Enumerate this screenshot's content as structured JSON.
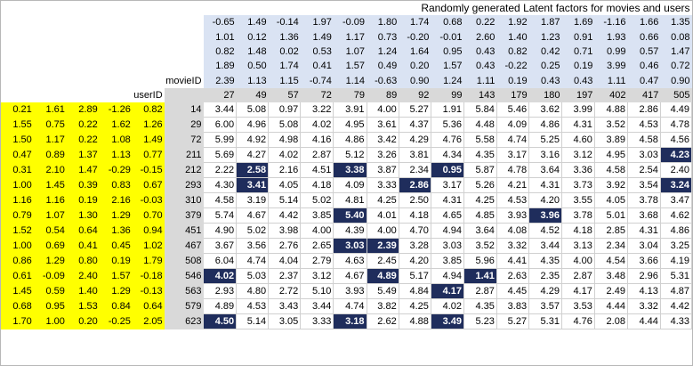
{
  "title": "Randomly generated Latent factors for movies and users",
  "movie_id_label": "movieID",
  "user_id_label": "userID",
  "movie_factors": [
    [
      "-0.65",
      "1.49",
      "-0.14",
      "1.97",
      "-0.09",
      "1.80",
      "1.74",
      "0.68",
      "0.22",
      "1.92",
      "1.87",
      "1.69",
      "-1.16",
      "1.66",
      "1.35"
    ],
    [
      "1.01",
      "0.12",
      "1.36",
      "1.49",
      "1.17",
      "0.73",
      "-0.20",
      "-0.01",
      "2.60",
      "1.40",
      "1.23",
      "0.91",
      "1.93",
      "0.66",
      "0.08"
    ],
    [
      "0.82",
      "1.48",
      "0.02",
      "0.53",
      "1.07",
      "1.24",
      "1.64",
      "0.95",
      "0.43",
      "0.82",
      "0.42",
      "0.71",
      "0.99",
      "0.57",
      "1.47"
    ],
    [
      "1.89",
      "0.50",
      "1.74",
      "0.41",
      "1.57",
      "0.49",
      "0.20",
      "1.57",
      "0.43",
      "-0.22",
      "0.25",
      "0.19",
      "3.99",
      "0.46",
      "0.72"
    ],
    [
      "2.39",
      "1.13",
      "1.15",
      "-0.74",
      "1.14",
      "-0.63",
      "0.90",
      "1.24",
      "1.11",
      "0.19",
      "0.43",
      "0.43",
      "1.11",
      "0.47",
      "0.90"
    ]
  ],
  "movie_ids": [
    "27",
    "49",
    "57",
    "72",
    "79",
    "89",
    "92",
    "99",
    "143",
    "179",
    "180",
    "197",
    "402",
    "417",
    "505"
  ],
  "rows": [
    {
      "factors": [
        "0.21",
        "1.61",
        "2.89",
        "-1.26",
        "0.82"
      ],
      "user_id": "14",
      "values": [
        "3.44",
        "5.08",
        "0.97",
        "3.22",
        "3.91",
        "4.00",
        "5.27",
        "1.91",
        "5.84",
        "5.46",
        "3.62",
        "3.99",
        "4.88",
        "2.86",
        "4.49"
      ]
    },
    {
      "factors": [
        "1.55",
        "0.75",
        "0.22",
        "1.62",
        "1.26"
      ],
      "user_id": "29",
      "values": [
        "6.00",
        "4.96",
        "5.08",
        "4.02",
        "4.95",
        "3.61",
        "4.37",
        "5.36",
        "4.48",
        "4.09",
        "4.86",
        "4.31",
        "3.52",
        "4.53",
        "4.78"
      ]
    },
    {
      "factors": [
        "1.50",
        "1.17",
        "0.22",
        "1.08",
        "1.49"
      ],
      "user_id": "72",
      "values": [
        "5.99",
        "4.92",
        "4.98",
        "4.16",
        "4.86",
        "3.42",
        "4.29",
        "4.76",
        "5.58",
        "4.74",
        "5.25",
        "4.60",
        "3.89",
        "4.58",
        "4.56"
      ]
    },
    {
      "factors": [
        "0.47",
        "0.89",
        "1.37",
        "1.13",
        "0.77"
      ],
      "user_id": "211",
      "values": [
        "5.69",
        "4.27",
        "4.02",
        "2.87",
        "5.12",
        "3.26",
        "3.81",
        "4.34",
        "4.35",
        "3.17",
        "3.16",
        "3.12",
        "4.95",
        "3.03",
        "4.23"
      ]
    },
    {
      "factors": [
        "0.31",
        "2.10",
        "1.47",
        "-0.29",
        "-0.15"
      ],
      "user_id": "212",
      "values": [
        "2.22",
        "2.58",
        "2.16",
        "4.51",
        "3.38",
        "3.87",
        "2.34",
        "0.95",
        "5.87",
        "4.78",
        "3.64",
        "3.36",
        "4.58",
        "2.54",
        "2.40"
      ]
    },
    {
      "factors": [
        "1.00",
        "1.45",
        "0.39",
        "0.83",
        "0.67"
      ],
      "user_id": "293",
      "values": [
        "4.30",
        "3.41",
        "4.05",
        "4.18",
        "4.09",
        "3.33",
        "2.86",
        "3.17",
        "5.26",
        "4.21",
        "4.31",
        "3.73",
        "3.92",
        "3.54",
        "3.24"
      ]
    },
    {
      "factors": [
        "1.16",
        "1.16",
        "0.19",
        "2.16",
        "-0.03"
      ],
      "user_id": "310",
      "values": [
        "4.58",
        "3.19",
        "5.14",
        "5.02",
        "4.81",
        "4.25",
        "2.50",
        "4.31",
        "4.25",
        "4.53",
        "4.20",
        "3.55",
        "4.05",
        "3.78",
        "3.47"
      ]
    },
    {
      "factors": [
        "0.79",
        "1.07",
        "1.30",
        "1.29",
        "0.70"
      ],
      "user_id": "379",
      "values": [
        "5.74",
        "4.67",
        "4.42",
        "3.85",
        "5.40",
        "4.01",
        "4.18",
        "4.65",
        "4.85",
        "3.93",
        "3.96",
        "3.78",
        "5.01",
        "3.68",
        "4.62"
      ]
    },
    {
      "factors": [
        "1.52",
        "0.54",
        "0.64",
        "1.36",
        "0.94"
      ],
      "user_id": "451",
      "values": [
        "4.90",
        "5.02",
        "3.98",
        "4.00",
        "4.39",
        "4.00",
        "4.70",
        "4.94",
        "3.64",
        "4.08",
        "4.52",
        "4.18",
        "2.85",
        "4.31",
        "4.86"
      ]
    },
    {
      "factors": [
        "1.00",
        "0.69",
        "0.41",
        "0.45",
        "1.02"
      ],
      "user_id": "467",
      "values": [
        "3.67",
        "3.56",
        "2.76",
        "2.65",
        "3.03",
        "2.39",
        "3.28",
        "3.03",
        "3.52",
        "3.32",
        "3.44",
        "3.13",
        "2.34",
        "3.04",
        "3.25"
      ]
    },
    {
      "factors": [
        "0.86",
        "1.29",
        "0.80",
        "0.19",
        "1.79"
      ],
      "user_id": "508",
      "values": [
        "6.04",
        "4.74",
        "4.04",
        "2.79",
        "4.63",
        "2.45",
        "4.20",
        "3.85",
        "5.96",
        "4.41",
        "4.35",
        "4.00",
        "4.54",
        "3.66",
        "4.19"
      ]
    },
    {
      "factors": [
        "0.61",
        "-0.09",
        "2.40",
        "1.57",
        "-0.18"
      ],
      "user_id": "546",
      "values": [
        "4.02",
        "5.03",
        "2.37",
        "3.12",
        "4.67",
        "4.89",
        "5.17",
        "4.94",
        "1.41",
        "2.63",
        "2.35",
        "2.87",
        "3.48",
        "2.96",
        "5.31"
      ]
    },
    {
      "factors": [
        "1.45",
        "0.59",
        "1.40",
        "1.29",
        "-0.13"
      ],
      "user_id": "563",
      "values": [
        "2.93",
        "4.80",
        "2.72",
        "5.10",
        "3.93",
        "5.49",
        "4.84",
        "4.17",
        "2.87",
        "4.45",
        "4.29",
        "4.17",
        "2.49",
        "4.13",
        "4.87"
      ]
    },
    {
      "factors": [
        "0.68",
        "0.95",
        "1.53",
        "0.84",
        "0.64"
      ],
      "user_id": "579",
      "values": [
        "4.89",
        "4.53",
        "3.43",
        "3.44",
        "4.74",
        "3.82",
        "4.25",
        "4.02",
        "4.35",
        "3.83",
        "3.57",
        "3.53",
        "4.44",
        "3.32",
        "4.42"
      ]
    },
    {
      "factors": [
        "1.70",
        "1.00",
        "0.20",
        "-0.25",
        "2.05"
      ],
      "user_id": "623",
      "values": [
        "4.50",
        "5.14",
        "3.05",
        "3.33",
        "3.18",
        "2.62",
        "4.88",
        "3.49",
        "5.23",
        "5.27",
        "5.31",
        "4.76",
        "2.08",
        "4.44",
        "4.33"
      ]
    }
  ],
  "highlighted": [
    [
      3,
      14
    ],
    [
      4,
      1
    ],
    [
      4,
      4
    ],
    [
      4,
      7
    ],
    [
      5,
      1
    ],
    [
      5,
      6
    ],
    [
      5,
      14
    ],
    [
      7,
      4
    ],
    [
      7,
      10
    ],
    [
      9,
      4
    ],
    [
      9,
      5
    ],
    [
      11,
      0
    ],
    [
      11,
      5
    ],
    [
      11,
      8
    ],
    [
      12,
      7
    ],
    [
      14,
      0
    ],
    [
      14,
      4
    ],
    [
      14,
      7
    ]
  ],
  "colors": {
    "movie_factor_bg": "#dae3f3",
    "user_factor_bg": "#ffff00",
    "id_bg": "#d9d9d9",
    "highlight_bg": "#1f2d5c",
    "highlight_text": "#ffffff"
  }
}
